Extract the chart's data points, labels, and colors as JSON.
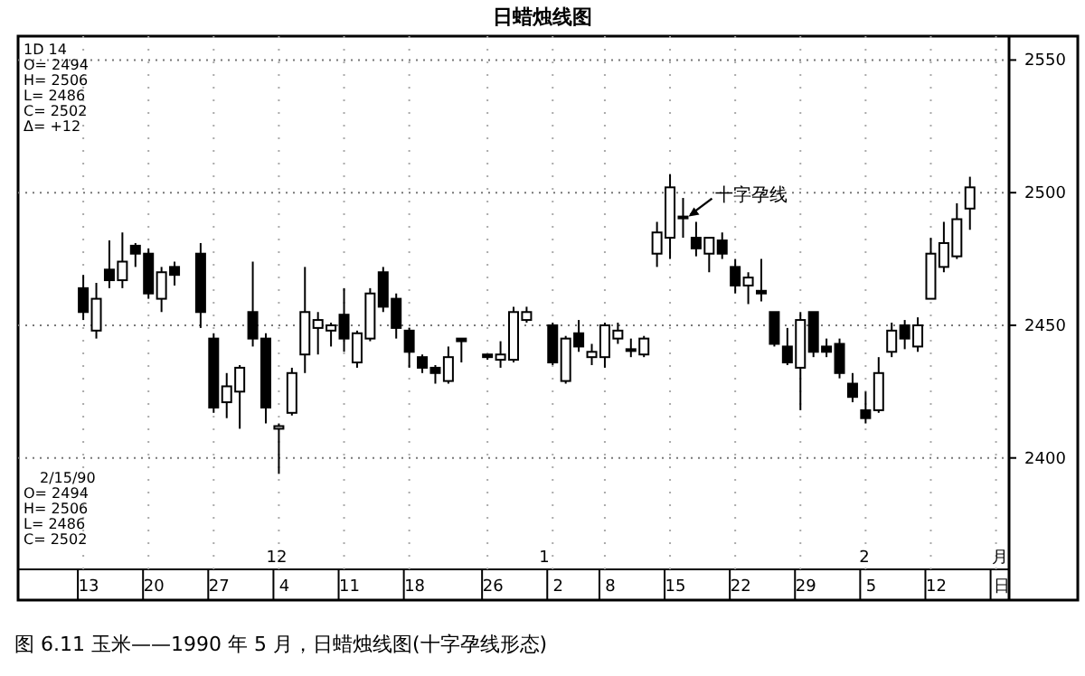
{
  "chart_data": {
    "type": "candlestick",
    "title": "日蜡烛线图",
    "categories": [
      "13",
      null,
      null,
      null,
      null,
      "20",
      null,
      null,
      null,
      null,
      "27",
      null,
      null,
      null,
      null,
      "4",
      null,
      null,
      null,
      null,
      "11",
      null,
      null,
      null,
      null,
      "18",
      null,
      null,
      null,
      null,
      null,
      "26",
      null,
      null,
      null,
      null,
      "2",
      null,
      null,
      null,
      "8",
      null,
      null,
      null,
      null,
      "15",
      null,
      null,
      null,
      null,
      "22",
      null,
      null,
      null,
      null,
      "29",
      null,
      null,
      null,
      null,
      "5",
      null,
      null,
      null,
      null,
      "12",
      null,
      null,
      null,
      null,
      "日"
    ],
    "ohlc": [
      [
        2464,
        2469,
        2452,
        2455
      ],
      [
        2448,
        2466,
        2445,
        2460
      ],
      [
        2471,
        2482,
        2464,
        2467
      ],
      [
        2467,
        2485,
        2464,
        2474
      ],
      [
        2480,
        2481,
        2472,
        2477
      ],
      [
        2477,
        2479,
        2460,
        2462
      ],
      [
        2460,
        2472,
        2455,
        2470
      ],
      [
        2472,
        2474,
        2465,
        2469
      ],
      null,
      [
        2477,
        2481,
        2449,
        2455
      ],
      [
        2445,
        2447,
        2417,
        2419
      ],
      [
        2421,
        2432,
        2415,
        2427
      ],
      [
        2425,
        2435,
        2411,
        2434
      ],
      [
        2455,
        2474,
        2442,
        2445
      ],
      [
        2445,
        2447,
        2413,
        2419
      ],
      [
        2411,
        2413,
        2394,
        2412
      ],
      [
        2417,
        2434,
        2416,
        2432
      ],
      [
        2439,
        2472,
        2432,
        2455
      ],
      [
        2449,
        2455,
        2439,
        2452
      ],
      [
        2448,
        2451,
        2442,
        2450
      ],
      [
        2454,
        2464,
        2440,
        2445
      ],
      [
        2436,
        2448,
        2434,
        2447
      ],
      [
        2445,
        2464,
        2444,
        2462
      ],
      [
        2470,
        2472,
        2455,
        2457
      ],
      [
        2460,
        2462,
        2445,
        2449
      ],
      [
        2448,
        2449,
        2434,
        2440
      ],
      [
        2438,
        2439,
        2432,
        2434
      ],
      [
        2434,
        2435,
        2428,
        2432
      ],
      [
        2429,
        2442,
        2428,
        2438
      ],
      [
        2445,
        2445,
        2436,
        2444
      ],
      null,
      [
        2439,
        2439,
        2437,
        2438
      ],
      [
        2437,
        2444,
        2434,
        2439
      ],
      [
        2437,
        2457,
        2436,
        2455
      ],
      [
        2452,
        2457,
        2451,
        2455
      ],
      null,
      [
        2450,
        2451,
        2435,
        2436
      ],
      [
        2429,
        2446,
        2428,
        2445
      ],
      [
        2447,
        2452,
        2440,
        2442
      ],
      [
        2438,
        2443,
        2435,
        2440
      ],
      [
        2438,
        2451,
        2434,
        2450
      ],
      [
        2445,
        2451,
        2443,
        2448
      ],
      [
        2441,
        2445,
        2438,
        2441
      ],
      [
        2439,
        2446,
        2438,
        2445
      ],
      [
        2477,
        2489,
        2472,
        2485
      ],
      [
        2483,
        2507,
        2475,
        2502
      ],
      [
        2491,
        2498,
        2483,
        2491
      ],
      [
        2483,
        2489,
        2476,
        2479
      ],
      [
        2477,
        2483,
        2470,
        2483
      ],
      [
        2482,
        2485,
        2475,
        2477
      ],
      [
        2472,
        2475,
        2462,
        2465
      ],
      [
        2465,
        2470,
        2458,
        2468
      ],
      [
        2463,
        2475,
        2459,
        2462
      ],
      [
        2455,
        2455,
        2442,
        2443
      ],
      [
        2442,
        2449,
        2435,
        2436
      ],
      [
        2434,
        2455,
        2418,
        2452
      ],
      [
        2455,
        2455,
        2438,
        2440
      ],
      [
        2442,
        2445,
        2438,
        2440
      ],
      [
        2443,
        2445,
        2430,
        2432
      ],
      [
        2428,
        2432,
        2421,
        2423
      ],
      [
        2418,
        2425,
        2413,
        2415
      ],
      [
        2418,
        2438,
        2417,
        2432
      ],
      [
        2440,
        2451,
        2438,
        2448
      ],
      [
        2450,
        2452,
        2441,
        2445
      ],
      [
        2442,
        2453,
        2440,
        2450
      ],
      [
        2460,
        2483,
        2460,
        2477
      ],
      [
        2472,
        2489,
        2470,
        2481
      ],
      [
        2476,
        2496,
        2475,
        2490
      ],
      [
        2494,
        2506,
        2486,
        2502
      ],
      null,
      null
    ],
    "color": "#000000",
    "ylim": [
      2358,
      2559
    ],
    "yticks": [
      2400,
      2450,
      2500,
      2550
    ],
    "grid": true,
    "annotations": [
      {
        "text": "十字孕线",
        "x": "15",
        "y": 2491
      },
      "12",
      "1",
      "2",
      "月",
      "1D 14",
      "O= 2494",
      "H= 2506",
      "L= 2486",
      "C= 2502",
      "Δ= +12",
      "2/15/90",
      "O= 2494",
      "H= 2506",
      "L= 2486",
      "C= 2502",
      "图 6.11  玉米——1990 年 5 月，日蜡烛线图(十字孕线形态)"
    ]
  }
}
